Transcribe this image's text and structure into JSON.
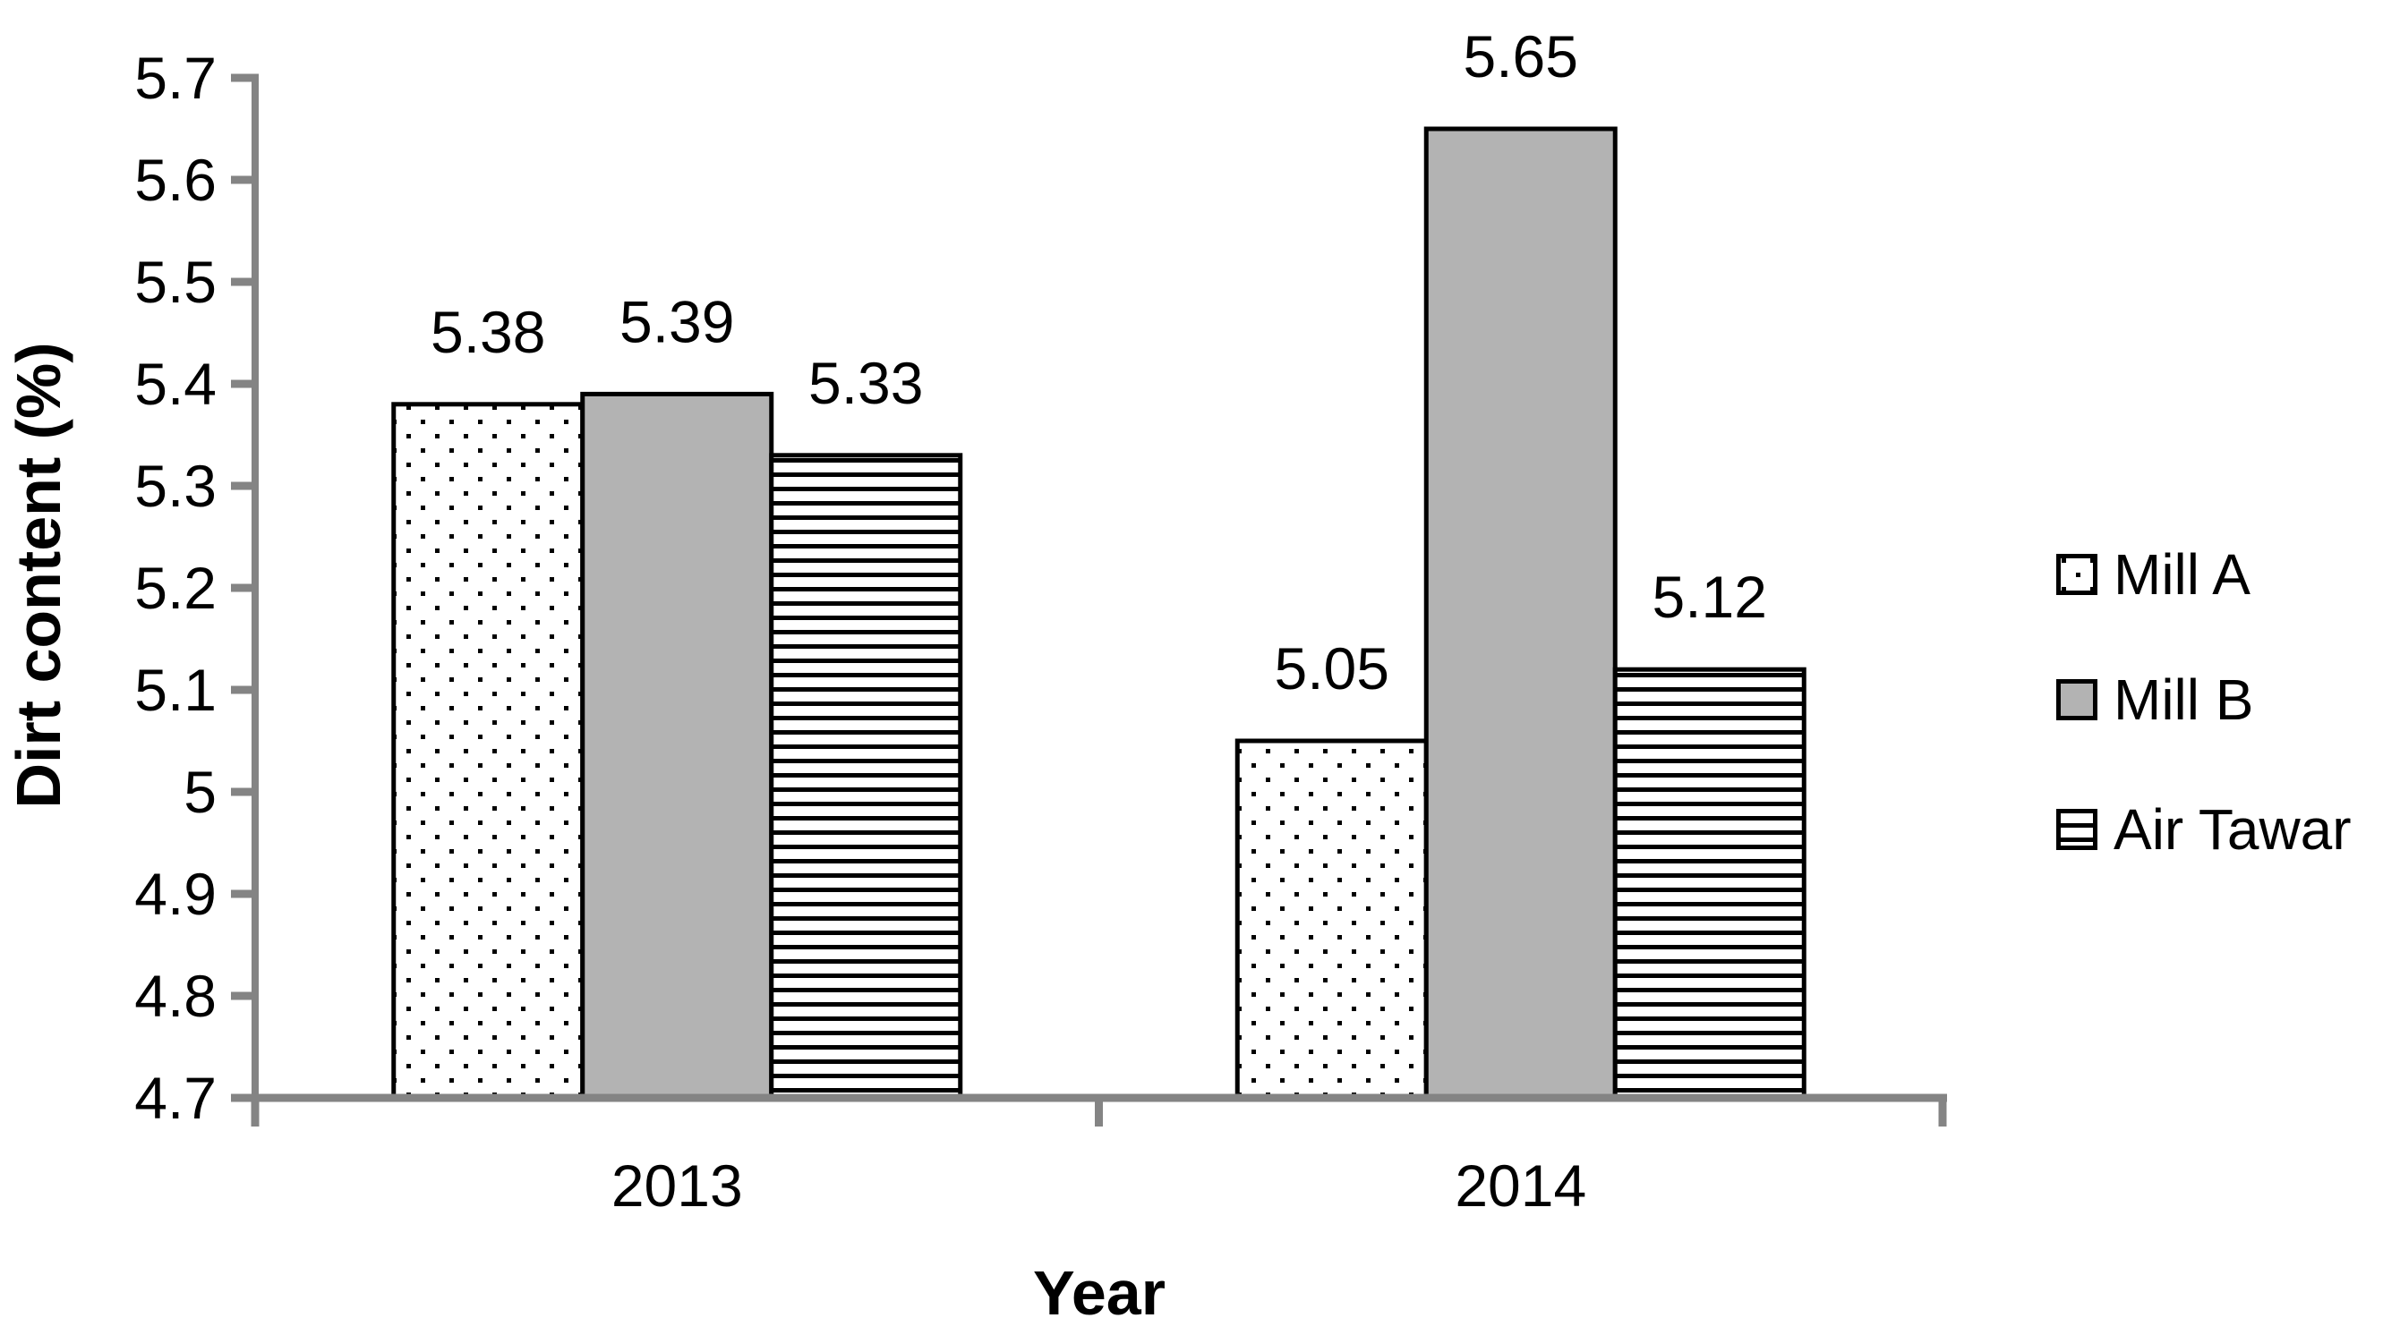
{
  "chart_data": {
    "type": "bar",
    "title": "",
    "categories": [
      "2013",
      "2014"
    ],
    "series": [
      {
        "name": "Mill A",
        "pattern": "dots",
        "values": [
          5.38,
          5.05
        ],
        "labels": [
          "5.38",
          "5.05"
        ]
      },
      {
        "name": "Mill B",
        "pattern": "solid",
        "values": [
          5.39,
          5.65
        ],
        "labels": [
          "5.39",
          "5.65"
        ]
      },
      {
        "name": "Air Tawar",
        "pattern": "hlines",
        "values": [
          5.33,
          5.12
        ],
        "labels": [
          "5.33",
          "5.12"
        ]
      }
    ],
    "xlabel": "Year",
    "ylabel": "Dirt content (%)",
    "ylim": [
      4.7,
      5.7
    ],
    "ytick_step": 0.1,
    "yticks": [
      4.7,
      4.8,
      4.9,
      5.0,
      5.1,
      5.2,
      5.3,
      5.4,
      5.5,
      5.6,
      5.7
    ],
    "ytick_labels": [
      "4.7",
      "4.8",
      "4.9",
      "5",
      "5.1",
      "5.2",
      "5.3",
      "5.4",
      "5.5",
      "5.6",
      "5.7"
    ],
    "legend_position": "right",
    "grid": false,
    "colors": {
      "axis": "#848484",
      "solid_fill": "#B3B3B3",
      "pattern_fg": "#000000",
      "bar_border": "#000000",
      "text": "#000000",
      "background": "#FFFFFF"
    }
  }
}
